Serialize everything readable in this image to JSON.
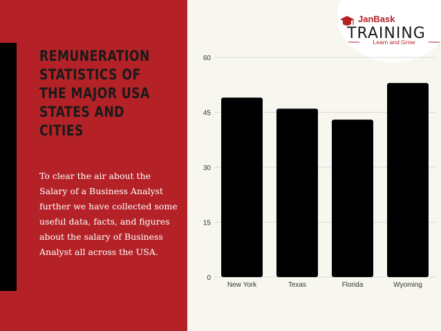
{
  "panel": {
    "heading": "REMUNERATION STATISTICS OF THE MAJOR USA STATES AND CITIES",
    "body": "To clear the air about the Salary of a Business Analyst further we have collected some useful data, facts, and figures about the salary of Business Analyst all across the USA."
  },
  "logo": {
    "brand": "JanBask",
    "word": "TRAINING",
    "tagline": "Learn and Grow"
  },
  "colors": {
    "panel": "#b42228",
    "bars": "#000000",
    "background": "#f8f7ef"
  },
  "chart_data": {
    "type": "bar",
    "categories": [
      "New York",
      "Texas",
      "Florida",
      "Wyoming"
    ],
    "values": [
      49,
      46,
      43,
      53
    ],
    "title": "",
    "xlabel": "",
    "ylabel": "",
    "ylim": [
      0,
      60
    ],
    "yticks": [
      0,
      15,
      30,
      45,
      60
    ],
    "grid": true,
    "legend": "none"
  }
}
